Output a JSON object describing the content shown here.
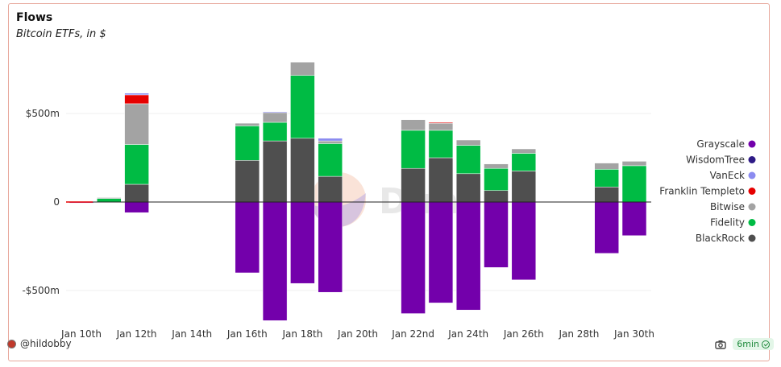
{
  "header": {
    "title": "Flows",
    "subtitle": "Bitcoin ETFs, in $"
  },
  "footer": {
    "user": "@hildobby",
    "age": "6min"
  },
  "watermark": "Dune",
  "colors": {
    "Grayscale": "#7300ab",
    "WisdomTree": "#2e1a86",
    "VanEck": "#8b8bf0",
    "Franklin Templeto": "#e60000",
    "Bitwise": "#a3a3a3",
    "Fidelity": "#00bb44",
    "BlackRock": "#4f4f4f"
  },
  "chart_data": {
    "type": "bar",
    "stacked": true,
    "title": "Flows",
    "subtitle": "Bitcoin ETFs, in $",
    "xlabel": "",
    "ylabel": "",
    "ylim": [
      -700000000,
      820000000
    ],
    "y_ticks": [
      {
        "value": 500000000,
        "label": "$500m"
      },
      {
        "value": 0,
        "label": "0"
      },
      {
        "value": -500000000,
        "label": "-$500m"
      }
    ],
    "x_tick_labels": [
      "Jan 10th",
      "Jan 12th",
      "Jan 14th",
      "Jan 16th",
      "Jan 18th",
      "Jan 20th",
      "Jan 22nd",
      "Jan 24th",
      "Jan 26th",
      "Jan 28th",
      "Jan 30th"
    ],
    "categories": [
      "Jan 10th",
      "Jan 11th",
      "Jan 12th",
      "Jan 13th",
      "Jan 14th",
      "Jan 15th",
      "Jan 16th",
      "Jan 17th",
      "Jan 18th",
      "Jan 19th",
      "Jan 20th",
      "Jan 21st",
      "Jan 22nd",
      "Jan 23rd",
      "Jan 24th",
      "Jan 25th",
      "Jan 26th",
      "Jan 27th",
      "Jan 28th",
      "Jan 29th",
      "Jan 30th"
    ],
    "grid": true,
    "legend_position": "right",
    "series": [
      {
        "name": "Grayscale",
        "values": [
          -5000000,
          0,
          -60000000,
          0,
          0,
          0,
          -400000000,
          -670000000,
          -460000000,
          -510000000,
          0,
          0,
          -630000000,
          -570000000,
          -610000000,
          -370000000,
          -440000000,
          0,
          0,
          -290000000,
          -190000000
        ]
      },
      {
        "name": "WisdomTree",
        "values": [
          0,
          0,
          0,
          0,
          0,
          0,
          0,
          0,
          0,
          0,
          0,
          0,
          0,
          0,
          0,
          0,
          0,
          0,
          0,
          0,
          0
        ]
      },
      {
        "name": "VanEck",
        "values": [
          0,
          0,
          10000000,
          0,
          0,
          0,
          0,
          5000000,
          0,
          15000000,
          0,
          0,
          0,
          0,
          0,
          0,
          0,
          0,
          0,
          0,
          0
        ]
      },
      {
        "name": "Franklin Templeto",
        "values": [
          0,
          0,
          50000000,
          0,
          0,
          0,
          0,
          0,
          0,
          0,
          0,
          0,
          0,
          5000000,
          0,
          0,
          0,
          0,
          0,
          0,
          0
        ]
      },
      {
        "name": "Bitwise",
        "values": [
          0,
          5000000,
          230000000,
          0,
          0,
          0,
          15000000,
          55000000,
          75000000,
          15000000,
          0,
          0,
          60000000,
          40000000,
          30000000,
          25000000,
          25000000,
          0,
          0,
          35000000,
          25000000
        ]
      },
      {
        "name": "Fidelity",
        "values": [
          0,
          20000000,
          225000000,
          0,
          0,
          0,
          195000000,
          105000000,
          355000000,
          185000000,
          0,
          0,
          215000000,
          155000000,
          160000000,
          125000000,
          100000000,
          0,
          0,
          100000000,
          205000000
        ]
      },
      {
        "name": "BlackRock",
        "values": [
          0,
          0,
          100000000,
          0,
          0,
          0,
          235000000,
          345000000,
          360000000,
          145000000,
          0,
          0,
          190000000,
          250000000,
          160000000,
          65000000,
          175000000,
          0,
          0,
          85000000,
          0
        ]
      }
    ]
  }
}
